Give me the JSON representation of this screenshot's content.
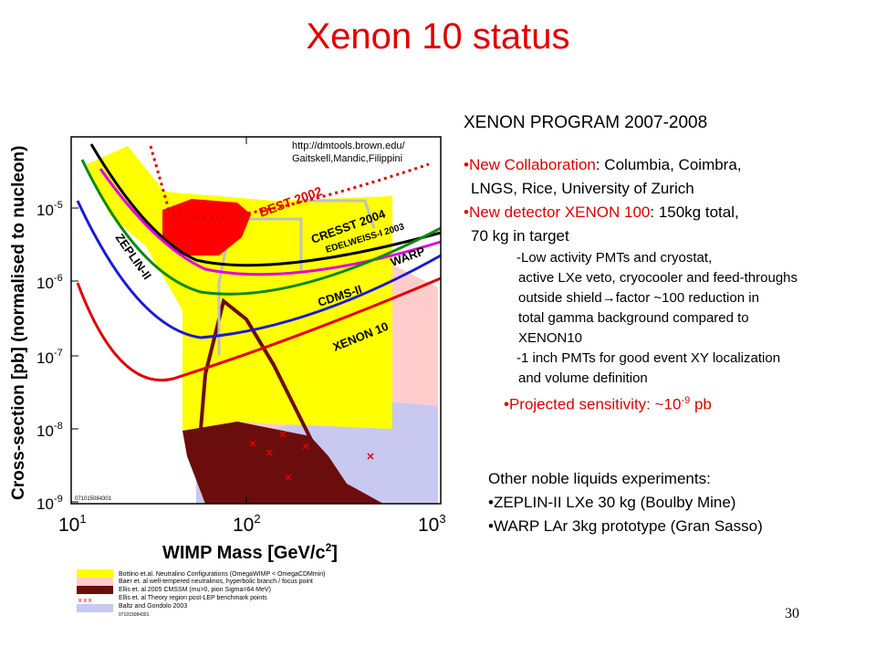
{
  "slide": {
    "title": "Xenon 10 status",
    "page_number": "30"
  },
  "plot": {
    "ylabel": "Cross-section [pb] (normalised to nucleon)",
    "xlabel_main": "WIMP Mass [GeV/c",
    "xlabel_sup": "2",
    "xlabel_end": "]",
    "credit_line1": "http://dmtools.brown.edu/",
    "credit_line2": "Gaitskell,Mandic,Filippini",
    "plot_id": "071015084301",
    "y_ticks": [
      {
        "base": "10",
        "exp": "-5"
      },
      {
        "base": "10",
        "exp": "-6"
      },
      {
        "base": "10",
        "exp": "-7"
      },
      {
        "base": "10",
        "exp": "-8"
      },
      {
        "base": "10",
        "exp": "-9"
      }
    ],
    "x_ticks": [
      {
        "base": "10",
        "exp": "1"
      },
      {
        "base": "10",
        "exp": "2"
      },
      {
        "base": "10",
        "exp": "3"
      }
    ],
    "curve_labels": {
      "best": "BEST 2002",
      "cresst": "CRESST 2004",
      "edelweiss": "EDELWEISS-I 2003",
      "warp": "WARP",
      "zeplin": "ZEPLIN-II",
      "cdms": "CDMS-II",
      "xenon": "XENON 10"
    },
    "colors": {
      "yellow_region": "#ffff00",
      "pink_region": "#ffcccc",
      "darkred_region": "#6b0d0d",
      "lavender_region": "#c8c8f0",
      "best_blob": "#ff0000",
      "xenon_curve": "#e00000",
      "cdms_curve": "#1a1ad8",
      "zeplin_curve": "#0a8a0a",
      "cresst_curve": "#000000",
      "magenta_curve": "#e000e0"
    }
  },
  "legend": {
    "plot_id": "071015084301",
    "entries": [
      {
        "text": "Bottino et.al. Neutralino Configurations (OmegaWIMP < OmegaCDMmin)",
        "color": "#ffff00"
      },
      {
        "text": "Baer et. al well-tempered neutralinos, hyperbolic branch / focus point",
        "color": "#ffcccc"
      },
      {
        "text": "Ellis et. al 2005 CMSSM (mu>0, pion Sigma=64 MeV)",
        "color": "#6b0d0d"
      },
      {
        "text": "Ellis et. al Theory region post-LEP benchmark points",
        "color": "#ffffff",
        "marker": "x x x"
      },
      {
        "text": "Baltz and Gondolo 2003",
        "color": "#c8c8f0"
      }
    ]
  },
  "program": {
    "heading": "XENON PROGRAM 2007-2008",
    "bullet1_red": "•New Collaboration",
    "bullet1_rest": ": Columbia, Coimbra,",
    "bullet1_line2": "LNGS, Rice, University of Zurich",
    "bullet2_red": "•New detector XENON 100",
    "bullet2_rest": ": 150kg total,",
    "bullet2_line2": "70 kg in target",
    "sub1_lines": [
      "-Low activity PMTs and cryostat,",
      "active LXe veto, cryocooler and feed-throughs",
      "outside shield",
      "factor ~100 reduction in",
      "total gamma background compared to",
      "XENON10"
    ],
    "arrow": "→",
    "sub2_lines": [
      "-1 inch PMTs for good event XY localization",
      "and volume definition"
    ],
    "projected_pre": "•Projected sensitivity: ~10",
    "projected_exp": "-9",
    "projected_post": " pb"
  },
  "other": {
    "heading": "Other noble liquids experiments:",
    "items": [
      "•ZEPLIN-II  LXe 30 kg (Boulby Mine)",
      "•WARP LAr 3kg prototype (Gran Sasso)"
    ]
  }
}
